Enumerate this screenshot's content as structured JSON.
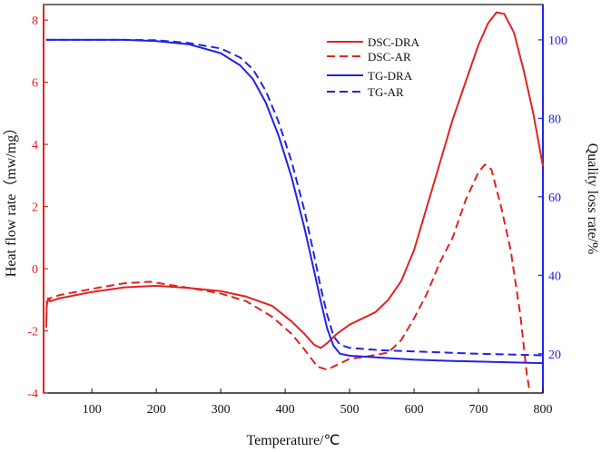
{
  "chart_data": {
    "type": "line",
    "title": "",
    "xlabel": "Temperature/℃",
    "ylabel_left": "Heat flow rate（mw/mg）",
    "ylabel_right": "Quality loss rate/%",
    "xlim": [
      25,
      800
    ],
    "ylim_left": [
      -4,
      8.5
    ],
    "ylim_right": [
      10,
      109
    ],
    "x_ticks": [
      100,
      200,
      300,
      400,
      500,
      600,
      700,
      800
    ],
    "y_left_ticks": [
      -4,
      -2,
      0,
      2,
      4,
      6,
      8
    ],
    "y_right_ticks": [
      20,
      40,
      60,
      80,
      100
    ],
    "grid": false,
    "legend_position": "top-right",
    "colors": {
      "red": "#e32121",
      "blue": "#1f24e6",
      "axis": "#111111"
    },
    "series": [
      {
        "name": "DSC-DRA",
        "axis": "left",
        "color": "#e32121",
        "dash": "solid",
        "points": [
          [
            29,
            -1.9
          ],
          [
            30,
            -1.2
          ],
          [
            32,
            -0.95
          ],
          [
            35,
            -1.05
          ],
          [
            50,
            -0.95
          ],
          [
            100,
            -0.75
          ],
          [
            150,
            -0.6
          ],
          [
            200,
            -0.55
          ],
          [
            250,
            -0.62
          ],
          [
            300,
            -0.72
          ],
          [
            340,
            -0.9
          ],
          [
            380,
            -1.2
          ],
          [
            410,
            -1.7
          ],
          [
            430,
            -2.1
          ],
          [
            445,
            -2.45
          ],
          [
            455,
            -2.55
          ],
          [
            465,
            -2.4
          ],
          [
            480,
            -2.1
          ],
          [
            500,
            -1.8
          ],
          [
            520,
            -1.6
          ],
          [
            540,
            -1.4
          ],
          [
            560,
            -1.0
          ],
          [
            580,
            -0.4
          ],
          [
            600,
            0.6
          ],
          [
            620,
            2.0
          ],
          [
            640,
            3.4
          ],
          [
            660,
            4.8
          ],
          [
            680,
            6.0
          ],
          [
            700,
            7.2
          ],
          [
            715,
            7.9
          ],
          [
            728,
            8.25
          ],
          [
            740,
            8.2
          ],
          [
            755,
            7.6
          ],
          [
            770,
            6.4
          ],
          [
            785,
            5.0
          ],
          [
            800,
            3.3
          ]
        ]
      },
      {
        "name": "DSC-AR",
        "axis": "left",
        "color": "#e32121",
        "dash": "dashed",
        "points": [
          [
            29,
            -1.1
          ],
          [
            35,
            -0.95
          ],
          [
            50,
            -0.85
          ],
          [
            100,
            -0.65
          ],
          [
            150,
            -0.47
          ],
          [
            190,
            -0.42
          ],
          [
            220,
            -0.52
          ],
          [
            260,
            -0.65
          ],
          [
            300,
            -0.8
          ],
          [
            340,
            -1.05
          ],
          [
            380,
            -1.55
          ],
          [
            410,
            -2.1
          ],
          [
            430,
            -2.6
          ],
          [
            450,
            -3.15
          ],
          [
            465,
            -3.25
          ],
          [
            480,
            -3.1
          ],
          [
            500,
            -2.9
          ],
          [
            520,
            -2.85
          ],
          [
            560,
            -2.7
          ],
          [
            580,
            -2.3
          ],
          [
            600,
            -1.6
          ],
          [
            620,
            -0.8
          ],
          [
            640,
            0.2
          ],
          [
            660,
            1.0
          ],
          [
            680,
            2.2
          ],
          [
            700,
            3.1
          ],
          [
            710,
            3.35
          ],
          [
            720,
            3.2
          ],
          [
            735,
            2.0
          ],
          [
            750,
            0.6
          ],
          [
            765,
            -1.5
          ],
          [
            775,
            -3.4
          ],
          [
            780,
            -4.0
          ]
        ]
      },
      {
        "name": "TG-DRA",
        "axis": "right",
        "color": "#1f24e6",
        "dash": "solid",
        "points": [
          [
            29,
            100
          ],
          [
            50,
            100
          ],
          [
            100,
            100
          ],
          [
            150,
            100
          ],
          [
            200,
            99.7
          ],
          [
            250,
            98.9
          ],
          [
            300,
            96.6
          ],
          [
            330,
            93.5
          ],
          [
            350,
            90
          ],
          [
            370,
            84
          ],
          [
            390,
            75.5
          ],
          [
            410,
            65
          ],
          [
            430,
            52
          ],
          [
            445,
            41
          ],
          [
            455,
            33.5
          ],
          [
            465,
            26.5
          ],
          [
            475,
            22
          ],
          [
            485,
            20
          ],
          [
            500,
            19.5
          ],
          [
            550,
            19
          ],
          [
            600,
            18.5
          ],
          [
            650,
            18.2
          ],
          [
            700,
            18
          ],
          [
            750,
            17.8
          ],
          [
            800,
            17.6
          ]
        ]
      },
      {
        "name": "TG-AR",
        "axis": "right",
        "color": "#1f24e6",
        "dash": "dashed",
        "points": [
          [
            29,
            100
          ],
          [
            50,
            100
          ],
          [
            100,
            100
          ],
          [
            150,
            100
          ],
          [
            200,
            99.9
          ],
          [
            250,
            99.2
          ],
          [
            300,
            97.8
          ],
          [
            330,
            95.5
          ],
          [
            350,
            92.5
          ],
          [
            370,
            87
          ],
          [
            390,
            79
          ],
          [
            410,
            69
          ],
          [
            430,
            56.5
          ],
          [
            445,
            45
          ],
          [
            455,
            37
          ],
          [
            465,
            30
          ],
          [
            475,
            24.5
          ],
          [
            485,
            22.3
          ],
          [
            500,
            21.5
          ],
          [
            550,
            20.9
          ],
          [
            600,
            20.6
          ],
          [
            650,
            20.3
          ],
          [
            700,
            20
          ],
          [
            750,
            19.8
          ],
          [
            800,
            19.6
          ]
        ]
      }
    ]
  }
}
